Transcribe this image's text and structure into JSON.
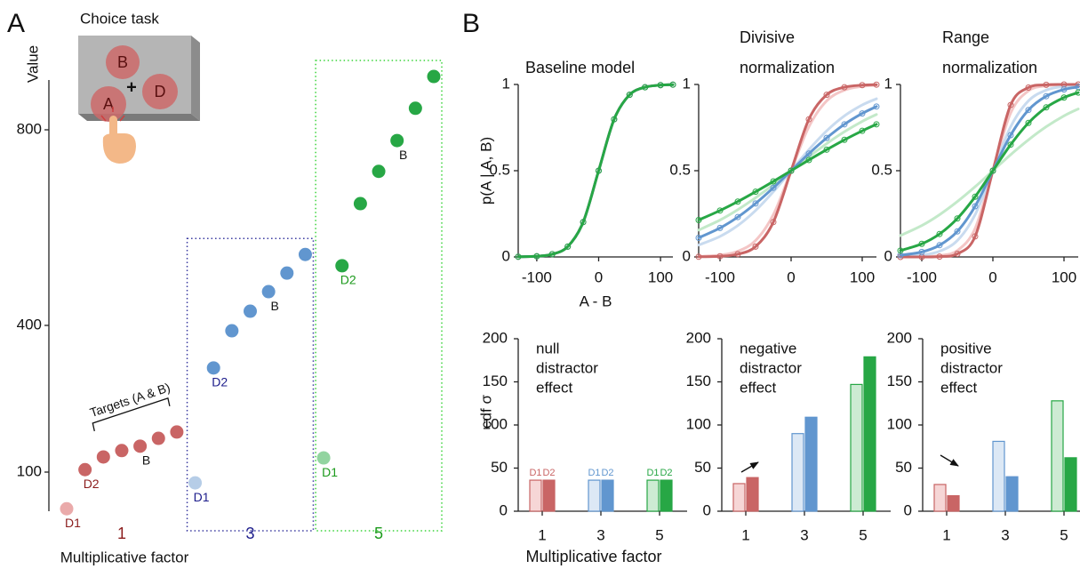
{
  "panel_labels": [
    "A",
    "B"
  ],
  "illustration": {
    "title": "Choice task",
    "items": [
      "B",
      "A",
      "D"
    ],
    "fixation": "+"
  },
  "chart_data": [
    {
      "type": "scatter",
      "ylabel": "Value",
      "xlabel": "Multiplicative factor",
      "ylim": [
        20,
        910
      ],
      "yticks": [
        100,
        400,
        800
      ],
      "annotation": "Targets (A & B)",
      "series": [
        {
          "name": "1",
          "color": "#c96565",
          "light_color": "#eaaaaa",
          "label_color": "#8b1c1c",
          "values": [
            25,
            105,
            131,
            144,
            153,
            169,
            182
          ],
          "point_labels": [
            "D1",
            "D2",
            null,
            null,
            "B",
            null,
            null
          ]
        },
        {
          "name": "3",
          "color": "#6196cf",
          "light_color": "#b6cde7",
          "label_color": "#1c1c8b",
          "box_color": "#3a3aa0",
          "values": [
            78,
            313,
            389,
            429,
            469,
            507,
            545
          ],
          "point_labels": [
            "D1",
            "D2",
            null,
            null,
            "B",
            null,
            null
          ]
        },
        {
          "name": "5",
          "color": "#27a745",
          "light_color": "#92d4a0",
          "label_color": "#1c9a1c",
          "box_color": "#3ad43a",
          "values": [
            129,
            522,
            649,
            715,
            778,
            844,
            909
          ],
          "point_labels": [
            "D1",
            "D2",
            null,
            null,
            "B",
            null,
            null
          ]
        }
      ]
    },
    {
      "type": "line",
      "title": [
        "Baseline model"
      ],
      "ylabel": "p(A | A, B)",
      "xlabel": "A - B",
      "x": [
        -130,
        -100,
        -75,
        -50,
        -25,
        0,
        25,
        50,
        75,
        100,
        120
      ],
      "xlim": [
        -130,
        120
      ],
      "xticks": [
        -100,
        0,
        100
      ],
      "ylim": [
        0,
        1
      ],
      "yticks": [
        0,
        0.5,
        1
      ],
      "series": [
        {
          "color": "#c96565",
          "markers": true,
          "values": [
            0.001,
            0.004,
            0.016,
            0.06,
            0.202,
            0.5,
            0.798,
            0.94,
            0.984,
            0.996,
            0.999
          ]
        },
        {
          "color": "#6196cf",
          "markers": true,
          "values": [
            0.001,
            0.004,
            0.016,
            0.06,
            0.202,
            0.5,
            0.798,
            0.94,
            0.984,
            0.996,
            0.999
          ]
        },
        {
          "color": "#27a745",
          "markers": true,
          "values": [
            0.001,
            0.004,
            0.016,
            0.06,
            0.202,
            0.5,
            0.798,
            0.94,
            0.984,
            0.996,
            0.999
          ]
        }
      ]
    },
    {
      "type": "line",
      "title": [
        "Divisive",
        "normalization"
      ],
      "x": [
        -130,
        -100,
        -75,
        -50,
        -25,
        0,
        25,
        50,
        75,
        100,
        120
      ],
      "xlim": [
        -130,
        120
      ],
      "xticks": [
        -100,
        0,
        100
      ],
      "ylim": [
        0,
        1
      ],
      "yticks": [
        0,
        0.5,
        1
      ],
      "series": [
        {
          "color": "#f4c6c6",
          "values": [
            0.003,
            0.011,
            0.033,
            0.095,
            0.245,
            0.5,
            0.755,
            0.905,
            0.967,
            0.989,
            0.996
          ]
        },
        {
          "color": "#c9dbef",
          "values": [
            0.069,
            0.119,
            0.182,
            0.269,
            0.378,
            0.5,
            0.622,
            0.731,
            0.818,
            0.881,
            0.917
          ]
        },
        {
          "color": "#c3e9c9",
          "values": [
            0.156,
            0.214,
            0.274,
            0.343,
            0.419,
            0.5,
            0.581,
            0.657,
            0.726,
            0.786,
            0.826
          ]
        },
        {
          "color": "#c96565",
          "markers": true,
          "values": [
            0.001,
            0.004,
            0.016,
            0.06,
            0.202,
            0.5,
            0.798,
            0.94,
            0.984,
            0.996,
            0.999
          ]
        },
        {
          "color": "#6196cf",
          "markers": true,
          "values": [
            0.111,
            0.168,
            0.231,
            0.31,
            0.401,
            0.5,
            0.599,
            0.69,
            0.769,
            0.832,
            0.872
          ]
        },
        {
          "color": "#27a745",
          "markers": true,
          "values": [
            0.214,
            0.269,
            0.321,
            0.378,
            0.438,
            0.5,
            0.562,
            0.622,
            0.679,
            0.731,
            0.769
          ]
        }
      ]
    },
    {
      "type": "line",
      "title": [
        "Range",
        "normalization"
      ],
      "x": [
        -130,
        -100,
        -75,
        -50,
        -25,
        0,
        25,
        50,
        75,
        100,
        120
      ],
      "xlim": [
        -130,
        120
      ],
      "xticks": [
        -100,
        0,
        100
      ],
      "ylim": [
        0,
        1
      ],
      "yticks": [
        0,
        0.5,
        1
      ],
      "series": [
        {
          "color": "#f4c6c6",
          "values": [
            0,
            0.002,
            0.008,
            0.037,
            0.165,
            0.5,
            0.835,
            0.963,
            0.992,
            0.998,
            1
          ]
        },
        {
          "color": "#c9dbef",
          "values": [
            0.003,
            0.011,
            0.033,
            0.095,
            0.245,
            0.5,
            0.755,
            0.905,
            0.967,
            0.989,
            0.996
          ]
        },
        {
          "color": "#c3e9c9",
          "values": [
            0.124,
            0.182,
            0.245,
            0.321,
            0.407,
            0.5,
            0.593,
            0.679,
            0.755,
            0.818,
            0.858
          ]
        },
        {
          "color": "#c96565",
          "markers": true,
          "values": [
            0,
            0,
            0.002,
            0.018,
            0.119,
            0.5,
            0.881,
            0.982,
            0.998,
            1,
            1
          ]
        },
        {
          "color": "#6196cf",
          "markers": true,
          "values": [
            0.01,
            0.029,
            0.068,
            0.148,
            0.294,
            0.5,
            0.706,
            0.852,
            0.932,
            0.971,
            0.985
          ]
        },
        {
          "color": "#27a745",
          "markers": true,
          "values": [
            0.037,
            0.076,
            0.133,
            0.223,
            0.349,
            0.5,
            0.651,
            0.777,
            0.867,
            0.924,
            0.953
          ]
        }
      ]
    },
    {
      "type": "bar",
      "ylabel": "cdf σ",
      "xlabel": "Multiplicative factor",
      "annotation": [
        "null",
        "distractor",
        "effect"
      ],
      "bar_labels": [
        "D1",
        "D2"
      ],
      "categories": [
        "1",
        "3",
        "5"
      ],
      "ylim": [
        0,
        200
      ],
      "yticks": [
        0,
        50,
        100,
        150,
        200
      ],
      "series": [
        {
          "colors": [
            "#f6d6d6",
            "#dce8f5",
            "#cdebd3"
          ],
          "values": [
            36,
            36,
            36
          ]
        },
        {
          "colors": [
            "#c96565",
            "#6196cf",
            "#27a745"
          ],
          "values": [
            36,
            36,
            36
          ]
        }
      ]
    },
    {
      "type": "bar",
      "annotation": [
        "negative",
        "distractor",
        "effect"
      ],
      "categories": [
        "1",
        "3",
        "5"
      ],
      "ylim": [
        0,
        200
      ],
      "yticks": [
        0,
        50,
        100,
        150,
        200
      ],
      "series": [
        {
          "colors": [
            "#f6d6d6",
            "#dce8f5",
            "#cdebd3"
          ],
          "values": [
            32,
            90,
            147
          ]
        },
        {
          "colors": [
            "#c96565",
            "#6196cf",
            "#27a745"
          ],
          "values": [
            39,
            109,
            179
          ]
        }
      ]
    },
    {
      "type": "bar",
      "annotation": [
        "positive",
        "distractor",
        "effect"
      ],
      "categories": [
        "1",
        "3",
        "5"
      ],
      "ylim": [
        0,
        200
      ],
      "yticks": [
        0,
        50,
        100,
        150,
        200
      ],
      "series": [
        {
          "colors": [
            "#f6d6d6",
            "#dce8f5",
            "#cdebd3"
          ],
          "values": [
            31,
            81,
            128
          ]
        },
        {
          "colors": [
            "#c96565",
            "#6196cf",
            "#27a745"
          ],
          "values": [
            18,
            40,
            62
          ]
        }
      ]
    }
  ]
}
